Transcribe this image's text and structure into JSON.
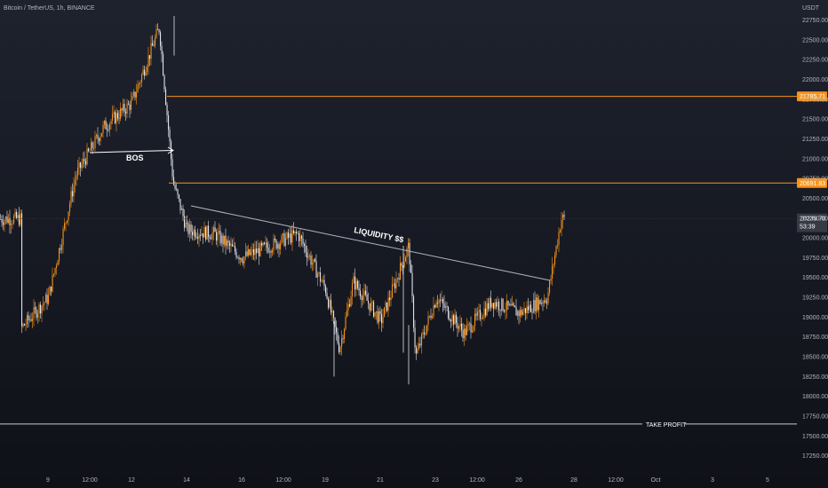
{
  "header": {
    "title": "Bitcoin / TetherUS, 1h, BINANCE"
  },
  "price_axis": {
    "unit": "USDT",
    "ticks": [
      "22750.00",
      "22500.00",
      "22250.00",
      "22000.00",
      "21750.00",
      "21500.00",
      "21250.00",
      "21000.00",
      "20750.00",
      "20500.00",
      "20250.00",
      "20000.00",
      "19750.00",
      "19500.00",
      "19250.00",
      "19000.00",
      "18750.00",
      "18500.00",
      "18250.00",
      "18000.00",
      "17750.00",
      "17500.00",
      "17250.00"
    ],
    "current_price": "20239.70",
    "countdown": "53:39"
  },
  "time_axis": {
    "ticks": [
      "9",
      "12:00",
      "12",
      "14",
      "16",
      "12:00",
      "19",
      "21",
      "23",
      "12:00",
      "26",
      "28",
      "12:00",
      "Oct",
      "3",
      "5"
    ]
  },
  "annotations": {
    "bos": "BOS",
    "liquidity": "LIQUIDITY $$",
    "take_profit": "TAKE PROFIT"
  },
  "levels": [
    {
      "label": "21785.71",
      "color": "#f7931a"
    },
    {
      "label": "20691.83",
      "color": "#f7931a"
    }
  ],
  "colors": {
    "up": "#f7931a",
    "down": "#e0e3eb",
    "level": "#f7931a",
    "take_profit": "#c8cbd3"
  },
  "chart_data": {
    "type": "candlestick",
    "title": "Bitcoin / TetherUS, 1h, BINANCE",
    "ylabel": "USDT",
    "ylim": [
      17100,
      22900
    ],
    "x_range": [
      "9",
      "5"
    ],
    "close_path": [
      [
        "8",
        18850
      ],
      [
        "9",
        19250
      ],
      [
        "10",
        20800
      ],
      [
        "11",
        21400
      ],
      [
        "12",
        21700
      ],
      [
        "13",
        22650
      ],
      [
        "13 12:00",
        20700
      ],
      [
        "14",
        20100
      ],
      [
        "15",
        20050
      ],
      [
        "16",
        19750
      ],
      [
        "17",
        19900
      ],
      [
        "18",
        20050
      ],
      [
        "19",
        19350
      ],
      [
        "19 12:00",
        18600
      ],
      [
        "20",
        19450
      ],
      [
        "21",
        18950
      ],
      [
        "22",
        19900
      ],
      [
        "22 06:00",
        18500
      ],
      [
        "23",
        19250
      ],
      [
        "24",
        18800
      ],
      [
        "25",
        19200
      ],
      [
        "26",
        19050
      ],
      [
        "27",
        19250
      ],
      [
        "27 12:00",
        20239.7
      ]
    ],
    "levels": [
      21785.71,
      20691.83,
      17650
    ],
    "annotations": [
      "BOS",
      "LIQUIDITY $$",
      "TAKE PROFIT"
    ],
    "grid": false,
    "legend": "none"
  }
}
